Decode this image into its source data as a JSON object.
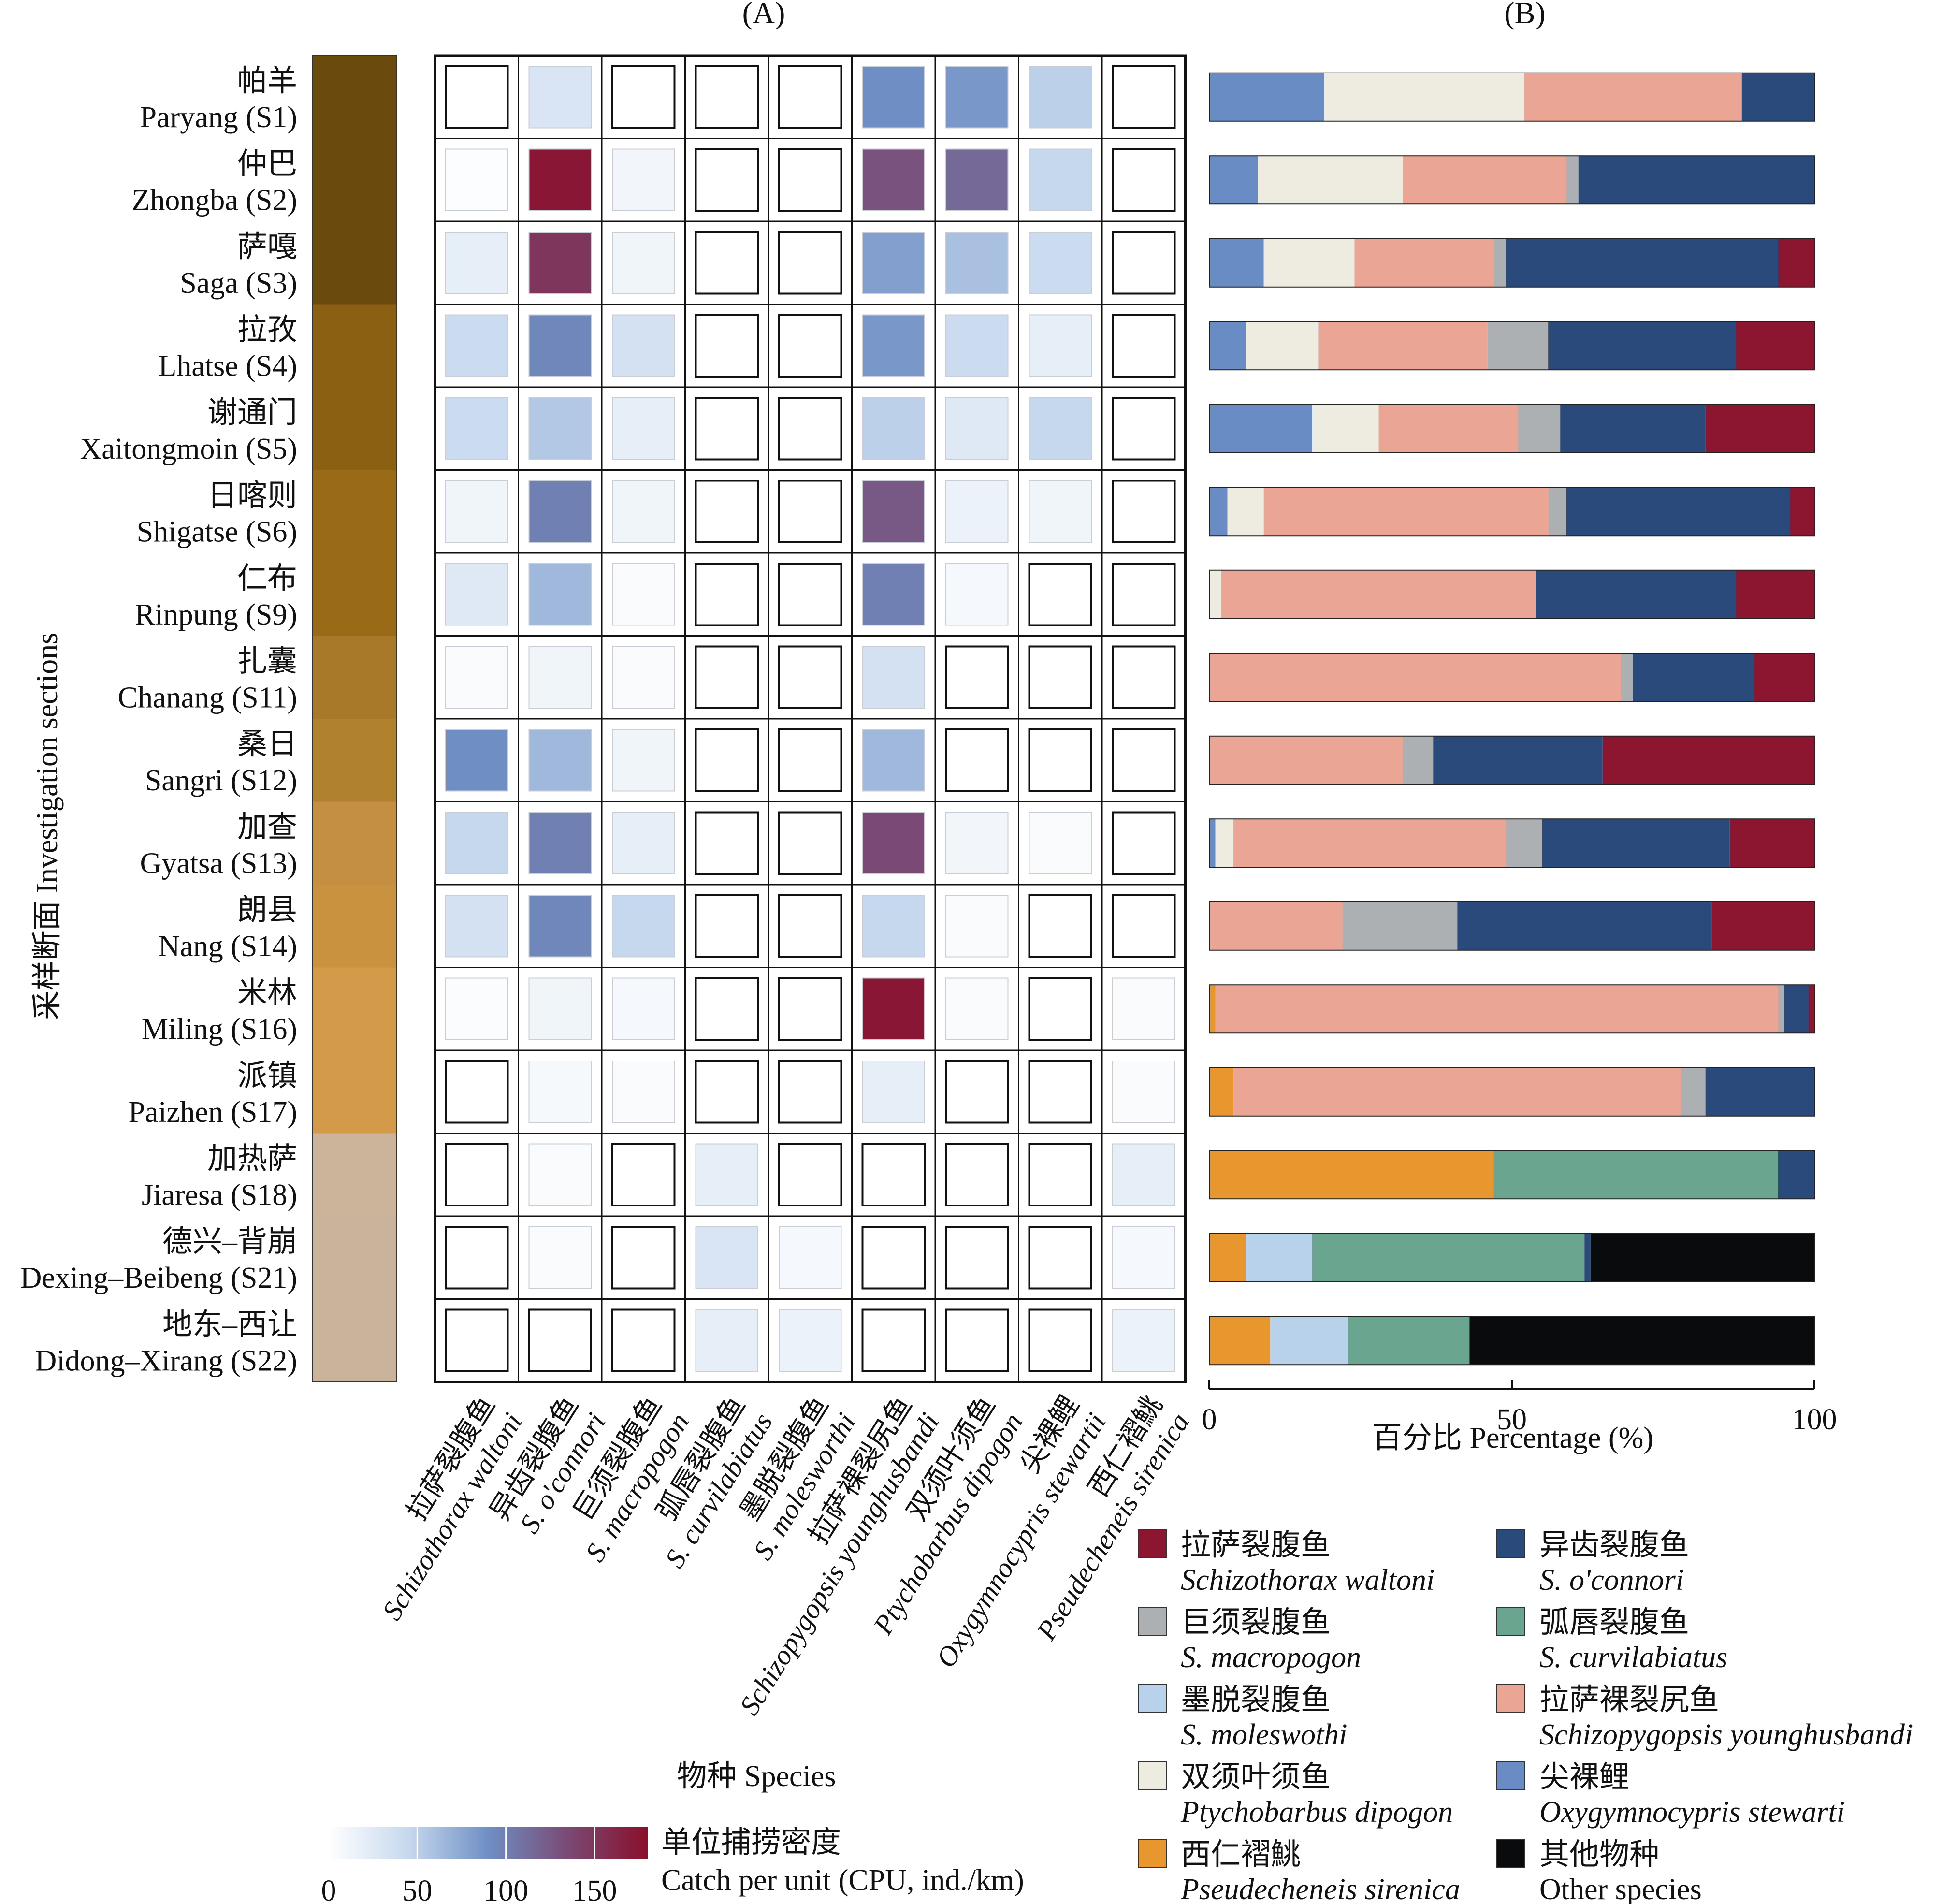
{
  "panel_a_label": "(A)",
  "panel_b_label": "(B)",
  "chart_data": [
    {
      "type": "heatmap",
      "panel": "(A)",
      "ylabel": "采样断面 Investigation sections",
      "xlabel": "物种 Species",
      "rows": [
        {
          "cn": "帕羊",
          "en": "Paryang (S1)",
          "group_color": "#6b4a0e"
        },
        {
          "cn": "仲巴",
          "en": "Zhongba (S2)",
          "group_color": "#6b4a0e"
        },
        {
          "cn": "萨嘎",
          "en": "Saga (S3)",
          "group_color": "#6b4a0e"
        },
        {
          "cn": "拉孜",
          "en": "Lhatse (S4)",
          "group_color": "#8b6012"
        },
        {
          "cn": "谢通门",
          "en": "Xaitongmoin (S5)",
          "group_color": "#8b6012"
        },
        {
          "cn": "日喀则",
          "en": "Shigatse (S6)",
          "group_color": "#9a6b16"
        },
        {
          "cn": "仁布",
          "en": "Rinpung (S9)",
          "group_color": "#9a6b16"
        },
        {
          "cn": "扎囊",
          "en": "Chanang (S11)",
          "group_color": "#a9792a"
        },
        {
          "cn": "桑日",
          "en": "Sangri (S12)",
          "group_color": "#b0822e"
        },
        {
          "cn": "加查",
          "en": "Gyatsa (S13)",
          "group_color": "#c48f42"
        },
        {
          "cn": "朗县",
          "en": "Nang (S14)",
          "group_color": "#c8923f"
        },
        {
          "cn": "米林",
          "en": "Miling (S16)",
          "group_color": "#d39a4a"
        },
        {
          "cn": "派镇",
          "en": "Paizhen (S17)",
          "group_color": "#d39a4a"
        },
        {
          "cn": "加热萨",
          "en": "Jiaresa (S18)",
          "group_color": "#cbb49a"
        },
        {
          "cn": "德兴–背崩",
          "en": "Dexing–Beibeng (S21)",
          "group_color": "#c9b39a"
        },
        {
          "cn": "地东–西让",
          "en": "Didong–Xirang (S22)",
          "group_color": "#c9b39a"
        }
      ],
      "columns": [
        {
          "cn": "拉萨裂腹鱼",
          "latin": "Schizothorax waltoni"
        },
        {
          "cn": "异齿裂腹鱼",
          "latin": "S. o'connori"
        },
        {
          "cn": "巨须裂腹鱼",
          "latin": "S. macropogon"
        },
        {
          "cn": "弧唇裂腹鱼",
          "latin": "S. curvilabiatus"
        },
        {
          "cn": "墨脱裂腹鱼",
          "latin": "S. molesworthi"
        },
        {
          "cn": "拉萨裸裂尻鱼",
          "latin": "Schizopygopsis younghusbandi"
        },
        {
          "cn": "双须叶须鱼",
          "latin": "Ptychobarbus dipogon"
        },
        {
          "cn": "尖裸鲤",
          "latin": "Oxygymnocypris stewartii"
        },
        {
          "cn": "西仁褶鮡",
          "latin": "Pseudecheneis sirenica"
        }
      ],
      "values": [
        [
          0,
          30,
          0,
          0,
          0,
          90,
          85,
          50,
          0
        ],
        [
          2,
          175,
          10,
          0,
          0,
          130,
          115,
          45,
          0
        ],
        [
          20,
          150,
          12,
          0,
          0,
          80,
          60,
          40,
          0
        ],
        [
          40,
          95,
          35,
          0,
          0,
          85,
          40,
          20,
          0
        ],
        [
          40,
          55,
          20,
          0,
          0,
          50,
          25,
          45,
          0
        ],
        [
          12,
          100,
          12,
          0,
          0,
          125,
          15,
          12,
          0
        ],
        [
          25,
          65,
          5,
          0,
          0,
          100,
          8,
          0,
          0
        ],
        [
          5,
          12,
          5,
          0,
          0,
          35,
          0,
          0,
          0
        ],
        [
          90,
          65,
          12,
          0,
          0,
          65,
          0,
          0,
          0
        ],
        [
          45,
          100,
          20,
          0,
          0,
          135,
          10,
          5,
          0
        ],
        [
          35,
          95,
          45,
          0,
          0,
          45,
          5,
          0,
          0
        ],
        [
          3,
          12,
          8,
          0,
          0,
          175,
          5,
          0,
          5
        ],
        [
          0,
          7,
          5,
          0,
          0,
          20,
          0,
          0,
          5
        ],
        [
          0,
          5,
          0,
          20,
          0,
          0,
          0,
          0,
          20
        ],
        [
          0,
          5,
          0,
          30,
          8,
          0,
          0,
          0,
          8
        ],
        [
          0,
          0,
          0,
          20,
          15,
          0,
          0,
          0,
          15
        ]
      ],
      "color_scale": {
        "title_cn": "单位捕捞密度",
        "title_en": "Catch per unit (CPU, ind./km)",
        "min": 0,
        "max": 180,
        "ticks": [
          0,
          50,
          100,
          150
        ],
        "colors": [
          "#ffffff",
          "#c6d8ee",
          "#6f8fc4",
          "#7a4a74",
          "#8a0f2c"
        ]
      }
    },
    {
      "type": "bar",
      "orientation": "horizontal",
      "stacked": true,
      "panel": "(B)",
      "xlabel": "百分比 Percentage (%)",
      "xlim": [
        0,
        100
      ],
      "xticks": [
        0,
        50,
        100
      ],
      "categories": [
        "Paryang (S1)",
        "Zhongba (S2)",
        "Saga (S3)",
        "Lhatse (S4)",
        "Xaitongmoin (S5)",
        "Shigatse (S6)",
        "Rinpung (S9)",
        "Chanang (S11)",
        "Sangri (S12)",
        "Gyatsa (S13)",
        "Nang (S14)",
        "Miling (S16)",
        "Paizhen (S17)",
        "Jiaresa (S18)",
        "Dexing–Beibeng (S21)",
        "Didong–Xirang (S22)"
      ],
      "series": [
        {
          "name": "Oxygymnocypris stewarti",
          "color": "#6a8cc4",
          "values": [
            19,
            8,
            9,
            6,
            17,
            3,
            0,
            0,
            0,
            1,
            0,
            0,
            0,
            0,
            0,
            0
          ]
        },
        {
          "name": "Ptychobarbus dipogon",
          "color": "#eeebe0",
          "values": [
            33,
            24,
            15,
            12,
            11,
            6,
            2,
            0,
            0,
            3,
            0,
            0,
            0,
            0,
            0,
            0
          ]
        },
        {
          "name": "Pseudecheneis sirenica",
          "color": "#e8962e",
          "values": [
            0,
            0,
            0,
            0,
            0,
            0,
            0,
            0,
            0,
            0,
            0,
            1,
            4,
            47,
            6,
            10
          ]
        },
        {
          "name": "S. moleswothi",
          "color": "#b8d2ec",
          "values": [
            0,
            0,
            0,
            0,
            0,
            0,
            0,
            0,
            0,
            0,
            0,
            0,
            0,
            0,
            11,
            13
          ]
        },
        {
          "name": "S. curvilabiatus",
          "color": "#6aa590",
          "values": [
            0,
            0,
            0,
            0,
            0,
            0,
            0,
            0,
            0,
            0,
            0,
            0,
            0,
            47,
            45,
            20
          ]
        },
        {
          "name": "Schizopygopsis younghusbandi",
          "color": "#eaa595",
          "values": [
            36,
            27,
            23,
            28,
            23,
            47,
            52,
            68,
            32,
            45,
            22,
            93,
            74,
            0,
            0,
            0
          ]
        },
        {
          "name": "S. macropogon",
          "color": "#adb0b3",
          "values": [
            0,
            2,
            2,
            10,
            7,
            3,
            0,
            2,
            5,
            6,
            19,
            1,
            4,
            0,
            0,
            0
          ]
        },
        {
          "name": "S. o'connori",
          "color": "#2a4a7c",
          "values": [
            12,
            39,
            45,
            31,
            24,
            37,
            33,
            20,
            28,
            31,
            42,
            4,
            18,
            6,
            1,
            0
          ]
        },
        {
          "name": "Schizothorax waltoni",
          "color": "#8c1530",
          "values": [
            0,
            0,
            6,
            13,
            18,
            4,
            13,
            10,
            35,
            14,
            17,
            1,
            0,
            0,
            0,
            0
          ]
        },
        {
          "name": "Other species",
          "color": "#0a0b0c",
          "values": [
            0,
            0,
            0,
            0,
            0,
            0,
            0,
            0,
            0,
            0,
            0,
            0,
            0,
            0,
            37,
            57
          ]
        }
      ],
      "legend": [
        {
          "cn": "拉萨裂腹鱼",
          "latin": "Schizothorax waltoni",
          "color": "#8c1530"
        },
        {
          "cn": "异齿裂腹鱼",
          "latin": "S. o'connori",
          "color": "#2a4a7c"
        },
        {
          "cn": "巨须裂腹鱼",
          "latin": "S. macropogon",
          "color": "#adb0b3"
        },
        {
          "cn": "弧唇裂腹鱼",
          "latin": "S. curvilabiatus",
          "color": "#6aa590"
        },
        {
          "cn": "墨脱裂腹鱼",
          "latin": "S. moleswothi",
          "color": "#b8d2ec"
        },
        {
          "cn": "拉萨裸裂尻鱼",
          "latin": "Schizopygopsis younghusbandi",
          "color": "#eaa595"
        },
        {
          "cn": "双须叶须鱼",
          "latin": "Ptychobarbus dipogon",
          "color": "#eeebe0"
        },
        {
          "cn": "尖裸鲤",
          "latin": "Oxygymnocypris stewarti",
          "color": "#6a8cc4"
        },
        {
          "cn": "西仁褶鮡",
          "latin": "Pseudecheneis sirenica",
          "color": "#e8962e"
        },
        {
          "cn": "其他物种",
          "latin": "Other species",
          "color": "#0a0b0c"
        }
      ]
    }
  ]
}
